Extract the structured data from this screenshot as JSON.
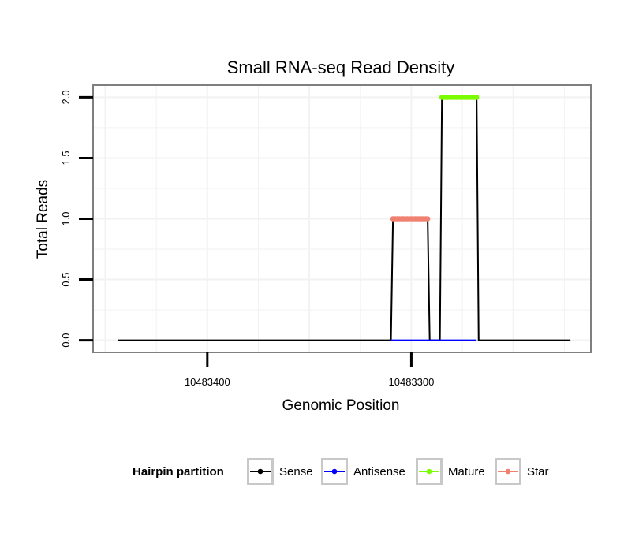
{
  "chart_data": {
    "type": "line",
    "title": "Small RNA-seq Read Density",
    "xlabel": "Genomic Position",
    "ylabel": "Total Reads",
    "x_reversed": true,
    "xlim": [
      10483456,
      10483212
    ],
    "ylim": [
      -0.1,
      2.1
    ],
    "x_ticks": [
      {
        "value": 10483400,
        "label": "10483400"
      },
      {
        "value": 10483300,
        "label": "10483300"
      }
    ],
    "y_ticks": [
      {
        "value": 0,
        "label": "0.0"
      },
      {
        "value": 0.5,
        "label": "0.5"
      },
      {
        "value": 1,
        "label": "1.0"
      },
      {
        "value": 1.5,
        "label": "1.5"
      },
      {
        "value": 2,
        "label": "2.0"
      }
    ],
    "series": [
      {
        "name": "Sense",
        "color": "#000000",
        "points": [
          [
            10483444,
            0
          ],
          [
            10483310,
            0
          ],
          [
            10483309,
            1
          ],
          [
            10483292,
            1
          ],
          [
            10483291,
            0
          ],
          [
            10483286,
            0
          ],
          [
            10483285,
            2
          ],
          [
            10483268,
            2
          ],
          [
            10483267,
            0
          ],
          [
            10483222,
            0
          ]
        ]
      },
      {
        "name": "Antisense",
        "color": "#0000ff",
        "points": [
          [
            10483310,
            0
          ],
          [
            10483268,
            0
          ]
        ]
      },
      {
        "name": "Mature",
        "color": "#7cfc00",
        "marker": "point",
        "points": [
          [
            10483285,
            2
          ],
          [
            10483284,
            2
          ],
          [
            10483283,
            2
          ],
          [
            10483282,
            2
          ],
          [
            10483281,
            2
          ],
          [
            10483280,
            2
          ],
          [
            10483279,
            2
          ],
          [
            10483278,
            2
          ],
          [
            10483277,
            2
          ],
          [
            10483276,
            2
          ],
          [
            10483275,
            2
          ],
          [
            10483274,
            2
          ],
          [
            10483273,
            2
          ],
          [
            10483272,
            2
          ],
          [
            10483271,
            2
          ],
          [
            10483270,
            2
          ],
          [
            10483269,
            2
          ],
          [
            10483268,
            2
          ]
        ]
      },
      {
        "name": "Star",
        "color": "#f08070",
        "marker": "point",
        "points": [
          [
            10483309,
            1
          ],
          [
            10483308,
            1
          ],
          [
            10483307,
            1
          ],
          [
            10483306,
            1
          ],
          [
            10483305,
            1
          ],
          [
            10483304,
            1
          ],
          [
            10483303,
            1
          ],
          [
            10483302,
            1
          ],
          [
            10483301,
            1
          ],
          [
            10483300,
            1
          ],
          [
            10483299,
            1
          ],
          [
            10483298,
            1
          ],
          [
            10483297,
            1
          ],
          [
            10483296,
            1
          ],
          [
            10483295,
            1
          ],
          [
            10483294,
            1
          ],
          [
            10483293,
            1
          ],
          [
            10483292,
            1
          ]
        ]
      }
    ],
    "legend": {
      "title": "Hairpin partition",
      "position": "bottom",
      "items": [
        {
          "label": "Sense",
          "color": "#000000"
        },
        {
          "label": "Antisense",
          "color": "#0000ff"
        },
        {
          "label": "Mature",
          "color": "#7cfc00"
        },
        {
          "label": "Star",
          "color": "#f08070"
        }
      ]
    },
    "grid": true
  }
}
